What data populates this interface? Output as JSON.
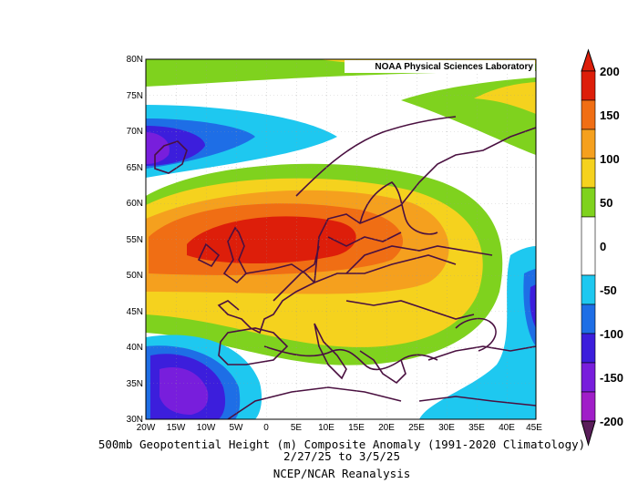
{
  "credit": "NOAA Physical Sciences Laboratory",
  "caption": {
    "line1": "500mb Geopotential Height (m) Composite Anomaly (1991-2020 Climatology)",
    "line2": "2/27/25  to 3/5/25",
    "line3": "NCEP/NCAR Reanalysis"
  },
  "lat_labels": [
    "80N",
    "75N",
    "70N",
    "65N",
    "60N",
    "55N",
    "50N",
    "45N",
    "40N",
    "35N",
    "30N"
  ],
  "lon_labels": [
    "20W",
    "15W",
    "10W",
    "5W",
    "0",
    "5E",
    "10E",
    "15E",
    "20E",
    "25E",
    "30E",
    "35E",
    "40E",
    "45E"
  ],
  "colorbar": {
    "labels": [
      "200",
      "150",
      "100",
      "50",
      "0",
      "-50",
      "-100",
      "-150",
      "-200"
    ],
    "colors": [
      "#dd1e0a",
      "#f06e14",
      "#f5a01e",
      "#f5d21e",
      "#7fd21e",
      "#ffffff",
      "#1ec8f0",
      "#1e6ee6",
      "#3c1edc",
      "#781edc",
      "#a01ec8",
      "#5a1e5a"
    ]
  }
}
